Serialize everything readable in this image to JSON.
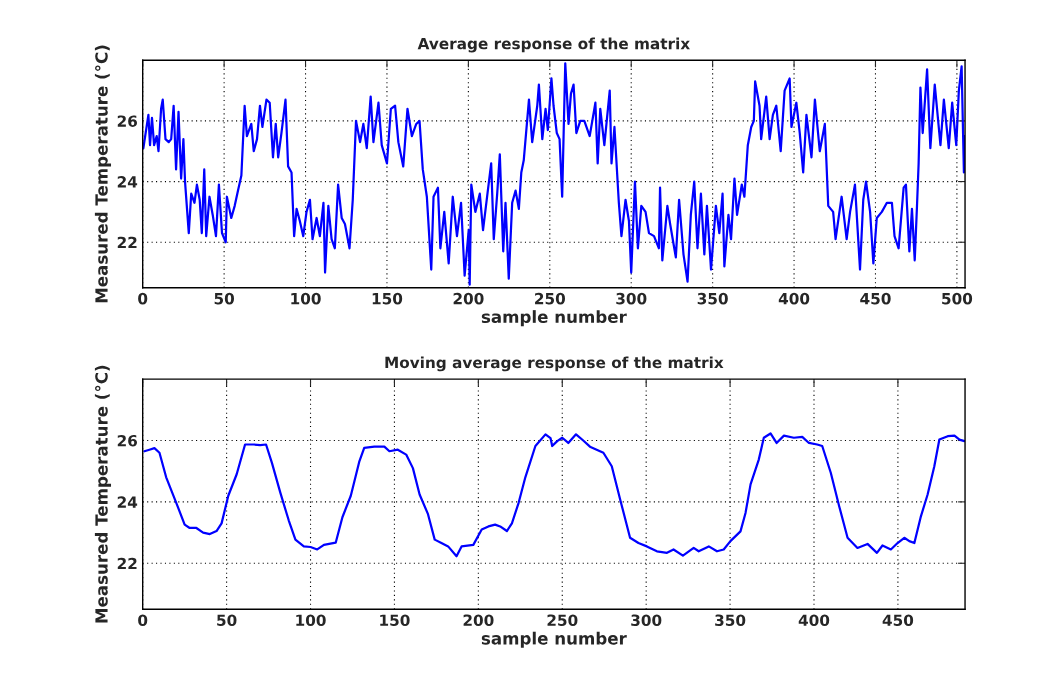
{
  "chart_data": [
    {
      "type": "line",
      "title": "Average response of the matrix",
      "xlabel": "sample number",
      "ylabel": "Measured Temperature (°C)",
      "color": "#0000ff",
      "grid": true,
      "xlim": [
        0,
        505
      ],
      "ylim": [
        20.5,
        28
      ],
      "xticks": [
        0,
        50,
        100,
        150,
        200,
        250,
        300,
        350,
        400,
        450,
        500
      ],
      "yticks": [
        22,
        24,
        26
      ],
      "x": [
        0.4,
        3.5,
        4.5,
        5.7,
        7,
        8.6,
        9.7,
        11.3,
        12.3,
        14,
        16,
        17.5,
        19,
        20.5,
        22,
        23.6,
        25,
        26,
        28.3,
        29.8,
        31.8,
        33.3,
        35,
        36.3,
        37.8,
        39,
        41,
        43,
        45,
        46.8,
        48.7,
        51,
        51.7,
        54.4,
        56.5,
        58.5,
        60.6,
        62.6,
        64,
        66.7,
        68.2,
        70.2,
        72,
        73.5,
        76,
        78,
        80,
        81.7,
        83.2,
        85.2,
        87.7,
        89.3,
        91.4,
        93,
        94.5,
        96.5,
        98.6,
        100.6,
        102.7,
        104.3,
        106.8,
        108.8,
        111,
        112,
        114,
        116,
        118,
        120,
        122.2,
        124.2,
        127,
        129,
        131,
        133.5,
        135.5,
        137.6,
        140,
        141.7,
        144.8,
        146.8,
        150,
        152.4,
        155,
        157,
        160,
        162.6,
        165.3,
        168,
        170,
        172,
        174.5,
        177.2,
        178.6,
        181.3,
        182.8,
        185.2,
        187.9,
        190.4,
        193,
        195.5,
        197.7,
        200.2,
        200.8,
        201.8,
        204.3,
        207,
        209,
        211.5,
        214,
        215.6,
        217.7,
        219.3,
        221.4,
        222.8,
        224.8,
        226.9,
        229,
        231,
        232.5,
        234,
        237.2,
        239.2,
        242.3,
        243.3,
        245.4,
        247.4,
        248.8,
        251,
        252.3,
        254.3,
        256,
        257.6,
        259.5,
        261.5,
        263,
        264.6,
        266.3,
        268.7,
        271.2,
        274.5,
        278,
        279.4,
        281,
        283.5,
        286.8,
        287.9,
        289.7,
        292.4,
        294,
        296.5,
        298.6,
        300,
        302.3,
        304.1,
        306.2,
        308.8,
        310.9,
        314,
        317,
        317.7,
        319.1,
        322.2,
        323.9,
        327.4,
        329.4,
        332.1,
        334.6,
        336.6,
        338.7,
        340.7,
        342.8,
        344.9,
        346.5,
        349,
        352,
        354.1,
        356.1,
        357.2,
        359.7,
        361.3,
        363.4,
        365,
        367.9,
        369.5,
        371.6,
        373.7,
        375.3,
        376.1,
        378.8,
        379.8,
        382.9,
        385,
        387,
        389.1,
        391.8,
        394.2,
        397.3,
        398.4,
        401.4,
        403.5,
        405.6,
        407.6,
        410.7,
        412.8,
        415.8,
        418.9,
        421,
        424,
        425.5,
        429.2,
        432.3,
        434.4,
        437.4,
        440.5,
        442.5,
        444.2,
        446.7,
        448.7,
        450.8,
        453.9,
        457,
        460.1,
        461.7,
        464.2,
        467.3,
        468.7,
        470.8,
        472.4,
        474.1,
        475.5,
        476.5,
        477.6,
        479,
        481.7,
        483.7,
        486.4,
        489.9,
        492,
        495,
        497.1,
        499.6,
        501.2,
        502.9,
        504.3,
        504.8
      ],
      "values": [
        25.1,
        26.2,
        25.2,
        26.1,
        25.2,
        25.5,
        25.0,
        26.4,
        26.7,
        25.4,
        25.3,
        25.4,
        26.5,
        24.4,
        26.3,
        24.1,
        25.4,
        24.0,
        22.3,
        23.6,
        23.3,
        23.9,
        23.4,
        22.3,
        24.4,
        22.2,
        23.5,
        22.9,
        22.2,
        23.9,
        22.3,
        22.0,
        23.5,
        22.8,
        23.2,
        23.7,
        24.2,
        26.5,
        25.5,
        25.9,
        25.0,
        25.4,
        26.5,
        25.8,
        26.7,
        26.6,
        24.8,
        25.9,
        24.8,
        25.6,
        26.7,
        24.5,
        24.3,
        22.2,
        23.1,
        22.7,
        22.2,
        23.0,
        23.4,
        22.1,
        22.8,
        22.2,
        23.3,
        21.0,
        23.2,
        22.1,
        21.8,
        23.9,
        22.8,
        22.6,
        21.8,
        23.4,
        26.0,
        25.3,
        25.9,
        25.1,
        26.8,
        25.3,
        26.6,
        25.2,
        24.6,
        26.4,
        26.5,
        25.3,
        24.5,
        26.4,
        25.5,
        25.9,
        26.0,
        24.4,
        23.5,
        21.1,
        23.5,
        23.8,
        21.8,
        23.0,
        21.3,
        23.5,
        22.2,
        23.3,
        20.9,
        22.4,
        20.6,
        23.9,
        23.0,
        23.6,
        22.4,
        23.5,
        24.6,
        22.1,
        23.6,
        24.9,
        21.7,
        23.3,
        20.8,
        23.3,
        23.7,
        23.1,
        24.3,
        24.7,
        26.7,
        25.3,
        26.5,
        27.2,
        25.4,
        26.4,
        25.7,
        27.4,
        26.5,
        25.6,
        25.4,
        23.5,
        27.9,
        25.9,
        26.9,
        27.2,
        25.6,
        26.0,
        26.0,
        25.5,
        26.6,
        24.6,
        26.4,
        25.2,
        27.0,
        24.6,
        25.8,
        23.3,
        22.2,
        23.4,
        22.7,
        21.0,
        24.0,
        21.8,
        23.2,
        23.0,
        22.3,
        22.2,
        21.8,
        23.8,
        21.4,
        23.2,
        22.6,
        21.5,
        23.4,
        21.6,
        20.7,
        22.9,
        24.0,
        21.8,
        23.6,
        21.6,
        23.2,
        21.1,
        23.2,
        22.3,
        23.6,
        21.2,
        22.9,
        22.1,
        24.1,
        22.9,
        23.9,
        23.5,
        25.2,
        25.8,
        26.0,
        27.3,
        26.5,
        25.4,
        26.8,
        25.4,
        26.2,
        26.5,
        25.0,
        27.0,
        27.4,
        25.8,
        26.6,
        25.6,
        24.3,
        26.2,
        24.8,
        26.7,
        25.0,
        25.9,
        23.2,
        23.0,
        22.1,
        23.5,
        22.1,
        23.0,
        23.9,
        21.1,
        23.4,
        24.0,
        23.0,
        21.3,
        22.8,
        23.0,
        23.3,
        23.3,
        22.2,
        21.8,
        23.8,
        23.9,
        21.7,
        23.1,
        21.4,
        23.2,
        24.6,
        27.1,
        25.6,
        27.7,
        25.1,
        27.2,
        25.2,
        26.7,
        25.1,
        26.6,
        25.2,
        27.0,
        27.8,
        24.3,
        25.5
      ]
    },
    {
      "type": "line",
      "title": "Moving average response of the matrix",
      "xlabel": "sample number",
      "ylabel": "Measured Temperature (°C)",
      "color": "#0000ff",
      "grid": true,
      "xlim": [
        0,
        490
      ],
      "ylim": [
        20.5,
        28
      ],
      "xticks": [
        0,
        50,
        100,
        150,
        200,
        250,
        300,
        350,
        400,
        450
      ],
      "yticks": [
        22,
        24,
        26
      ],
      "x": [
        1,
        4,
        7,
        10,
        14,
        20,
        25,
        28,
        32,
        36,
        40,
        44,
        47,
        51,
        56,
        61,
        66,
        70,
        73.5,
        77,
        82,
        87,
        91,
        96,
        100,
        104,
        108,
        115,
        119,
        124,
        129,
        132,
        138,
        144,
        147,
        152,
        157,
        161,
        165,
        170,
        174,
        178,
        182,
        187,
        190,
        197,
        202,
        206,
        210,
        213,
        217,
        220,
        224,
        228,
        234,
        240,
        243,
        244,
        247,
        250,
        253.6,
        258.2,
        262.5,
        266.5,
        274.5,
        279.5,
        284.5,
        290.4,
        295.4,
        300.4,
        306.4,
        312.4,
        316.3,
        321.9,
        328.3,
        331.3,
        337.3,
        342.2,
        346.2,
        350.2,
        356.2,
        359.2,
        362.2,
        367.1,
        370.1,
        374.1,
        377.7,
        382.1,
        388,
        393,
        397,
        401.9,
        404.9,
        410,
        415,
        420,
        425.9,
        431.9,
        437.5,
        440.8,
        445.8,
        449.8,
        453.8,
        456.8,
        459.8,
        463.7,
        467.7,
        471.7,
        474.7,
        479.7,
        483.7,
        486.7,
        489.6
      ],
      "values": [
        25.65,
        25.7,
        25.75,
        25.6,
        24.8,
        23.97,
        23.26,
        23.15,
        23.15,
        23.0,
        22.95,
        23.05,
        23.3,
        24.2,
        24.9,
        25.87,
        25.87,
        25.85,
        25.87,
        25.27,
        24.3,
        23.4,
        22.77,
        22.55,
        22.53,
        22.45,
        22.6,
        22.67,
        23.5,
        24.2,
        25.3,
        25.76,
        25.8,
        25.8,
        25.65,
        25.7,
        25.54,
        25.1,
        24.24,
        23.6,
        22.77,
        22.66,
        22.55,
        22.23,
        22.55,
        22.6,
        23.1,
        23.2,
        23.26,
        23.2,
        23.05,
        23.3,
        23.97,
        24.8,
        25.82,
        26.2,
        26.08,
        25.82,
        25.98,
        26.09,
        25.92,
        26.2,
        26.0,
        25.8,
        25.6,
        25.16,
        24.08,
        22.83,
        22.66,
        22.55,
        22.39,
        22.34,
        22.45,
        22.25,
        22.5,
        22.39,
        22.55,
        22.39,
        22.45,
        22.72,
        23.04,
        23.64,
        24.57,
        25.38,
        26.09,
        26.23,
        25.92,
        26.16,
        26.09,
        26.12,
        25.92,
        25.87,
        25.82,
        24.95,
        23.86,
        22.83,
        22.5,
        22.63,
        22.34,
        22.58,
        22.45,
        22.66,
        22.83,
        22.72,
        22.66,
        23.53,
        24.24,
        25.16,
        26.03,
        26.14,
        26.16,
        26.03,
        25.98
      ]
    }
  ]
}
